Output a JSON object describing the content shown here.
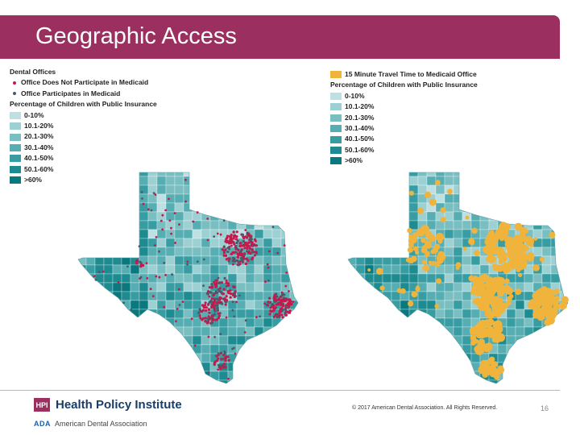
{
  "header": {
    "title": "Geographic Access"
  },
  "left_legend": {
    "dental_title": "Dental Offices",
    "points": [
      {
        "label": "Office Does Not Participate in Medicaid",
        "color": "#c8174a"
      },
      {
        "label": "Office Participates in Medicaid",
        "color": "#4a5a6a"
      }
    ],
    "percent_title": "Percentage of Children with Public Insurance",
    "bins": [
      {
        "label": "0-10%",
        "color": "#bfe0e2"
      },
      {
        "label": "10.1-20%",
        "color": "#9dd0d3"
      },
      {
        "label": "20.1-30%",
        "color": "#79bfc2"
      },
      {
        "label": "30.1-40%",
        "color": "#56aeb2"
      },
      {
        "label": "40.1-50%",
        "color": "#389da2"
      },
      {
        "label": "50.1-60%",
        "color": "#1e8b91"
      },
      {
        "label": ">60%",
        "color": "#0a787f"
      }
    ]
  },
  "right_legend": {
    "travel_label": "15 Minute Travel Time to Medicaid Office",
    "travel_color": "#f0b43c",
    "percent_title": "Percentage of Children with Public Insurance",
    "bins": [
      {
        "label": "0-10%",
        "color": "#bfe0e2"
      },
      {
        "label": "10.1-20%",
        "color": "#9dd0d3"
      },
      {
        "label": "20.1-30%",
        "color": "#79bfc2"
      },
      {
        "label": "30.1-40%",
        "color": "#56aeb2"
      },
      {
        "label": "40.1-50%",
        "color": "#389da2"
      },
      {
        "label": "50.1-60%",
        "color": "#1e8b91"
      },
      {
        "label": ">60%",
        "color": "#0a787f"
      }
    ]
  },
  "footer": {
    "hpi_mark": "HPI",
    "hpi_name": "Health Policy Institute",
    "ada_mark": "ADA",
    "ada_name": "American Dental Association",
    "copyright": "© 2017 American Dental Association. All Rights Reserved.",
    "page_number": "16"
  }
}
